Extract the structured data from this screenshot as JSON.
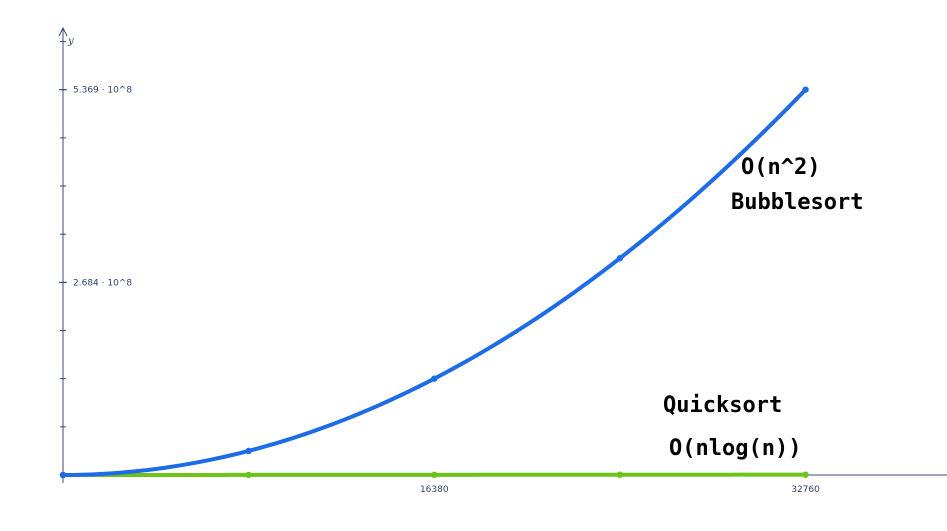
{
  "chart_data": {
    "type": "line",
    "ylabel": "y",
    "xlabel": "",
    "xlim": [
      0,
      39000
    ],
    "ylim": [
      0,
      620000000.0
    ],
    "x_ticks": [
      {
        "value": 16380,
        "label": "16380"
      },
      {
        "value": 32760,
        "label": "32760"
      }
    ],
    "y_ticks": [
      {
        "value": 268400000.0,
        "label": "2.684 · 10^8"
      },
      {
        "value": 536900000.0,
        "label": "5.369 · 10^8"
      }
    ],
    "grid": false,
    "series": [
      {
        "color": "#1e6be8",
        "x": [
          0,
          8190,
          16380,
          24570,
          32760
        ],
        "y": [
          0,
          33500000.0,
          134200000.0,
          302000000.0,
          536900000.0
        ]
      },
      {
        "color": "#6cc418",
        "x": [
          0,
          8190,
          16380,
          24570,
          32760
        ],
        "y": [
          0,
          106000.0,
          229000.0,
          358000.0,
          491000.0
        ]
      }
    ],
    "annotations": [
      {
        "text": "O(n^2)"
      },
      {
        "text": "Bubblesort"
      },
      {
        "text": "Quicksort"
      },
      {
        "text": "O(nlog(n))"
      }
    ]
  }
}
